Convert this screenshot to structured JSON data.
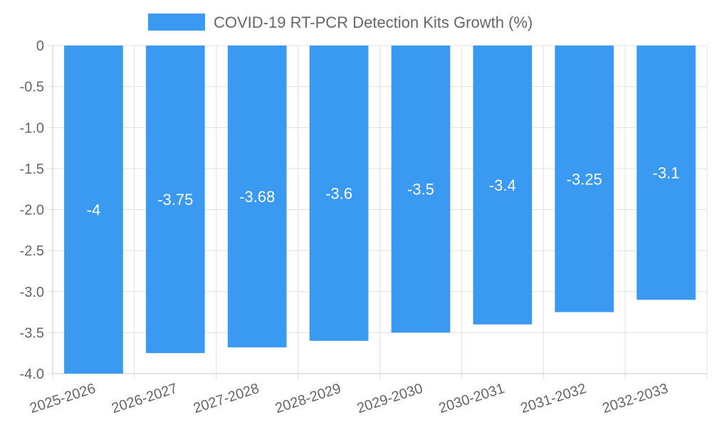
{
  "chart_data": {
    "type": "bar",
    "categories": [
      "2025-2026",
      "2026-2027",
      "2027-2028",
      "2028-2029",
      "2029-2030",
      "2030-2031",
      "2031-2032",
      "2032-2033"
    ],
    "series": [
      {
        "name": "COVID-19 RT-PCR Detection Kits Growth (%)",
        "values": [
          -4,
          -3.75,
          -3.68,
          -3.6,
          -3.5,
          -3.4,
          -3.25,
          -3.1
        ],
        "color": "#3a99f0"
      }
    ],
    "data_labels": [
      "-4",
      "-3.75",
      "-3.68",
      "-3.6",
      "-3.5",
      "-3.4",
      "-3.25",
      "-3.1"
    ],
    "y_ticks": [
      0,
      -0.5,
      -1.0,
      -1.5,
      -2.0,
      -2.5,
      -3.0,
      -3.5,
      -4.0
    ],
    "y_tick_labels": [
      "0",
      "-0.5",
      "-1.0",
      "-1.5",
      "-2.0",
      "-2.5",
      "-3.0",
      "-3.5",
      "-4.0"
    ],
    "ylim": [
      -4.0,
      0
    ],
    "xlabel": "",
    "ylabel": "",
    "grid": true,
    "legend_position": "top-center"
  }
}
